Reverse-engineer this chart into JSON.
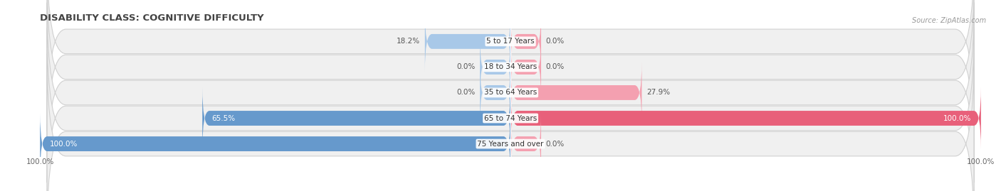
{
  "title": "DISABILITY CLASS: COGNITIVE DIFFICULTY",
  "source": "Source: ZipAtlas.com",
  "categories": [
    "5 to 17 Years",
    "18 to 34 Years",
    "35 to 64 Years",
    "65 to 74 Years",
    "75 Years and over"
  ],
  "male_values": [
    18.2,
    0.0,
    0.0,
    65.5,
    100.0
  ],
  "female_values": [
    0.0,
    0.0,
    27.9,
    100.0,
    0.0
  ],
  "male_color_light": "#a8c8e8",
  "male_color_dark": "#6699cc",
  "female_color_light": "#f4a0b0",
  "female_color_dark": "#e8607a",
  "row_bg_color": "#efefef",
  "row_border_color": "#d8d8d8",
  "title_fontsize": 9.5,
  "label_fontsize": 7.5,
  "value_fontsize": 7.5,
  "axis_label_fontsize": 7.5,
  "max_value": 100.0,
  "bar_height": 0.58,
  "stub_size": 6.5,
  "figsize": [
    14.06,
    2.69
  ]
}
